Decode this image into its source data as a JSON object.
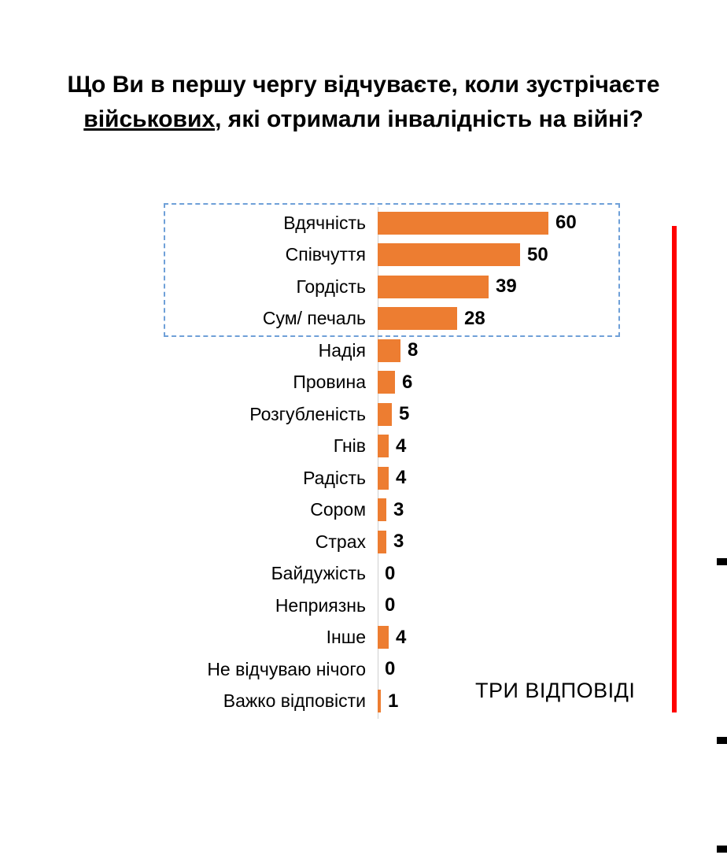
{
  "title": {
    "line1": "Що Ви в першу чергу відчуваєте, коли зустрічаєте",
    "line2_underlined": "військових",
    "line2_rest": ", які отримали інвалідність на війні?"
  },
  "note": "ТРИ ВІДПОВІДІ",
  "colors": {
    "bar": "#ED7D31",
    "highlight_box_border": "#6FA0D8",
    "accent_line": "#FF0000"
  },
  "chart_data": {
    "type": "bar",
    "orientation": "horizontal",
    "categories": [
      "Вдячність",
      "Співчуття",
      "Гордість",
      "Сум/ печаль",
      "Надія",
      "Провина",
      "Розгубленість",
      "Гнів",
      "Радість",
      "Сором",
      "Страх",
      "Байдужість",
      "Неприязнь",
      "Інше",
      "Не відчуваю нічого",
      "Важко відповісти"
    ],
    "values": [
      60,
      50,
      39,
      28,
      8,
      6,
      5,
      4,
      4,
      3,
      3,
      0,
      0,
      4,
      0,
      1
    ],
    "title": "Що Ви в першу чергу відчуваєте, коли зустрічаєте військових, які отримали інвалідність на війні?",
    "xlabel": "",
    "ylabel": "",
    "xlim": [
      0,
      64
    ],
    "grid": false,
    "legend": false,
    "data_labels": true,
    "highlighted_top_rows": 4,
    "annotation": "ТРИ ВІДПОВІДІ"
  }
}
